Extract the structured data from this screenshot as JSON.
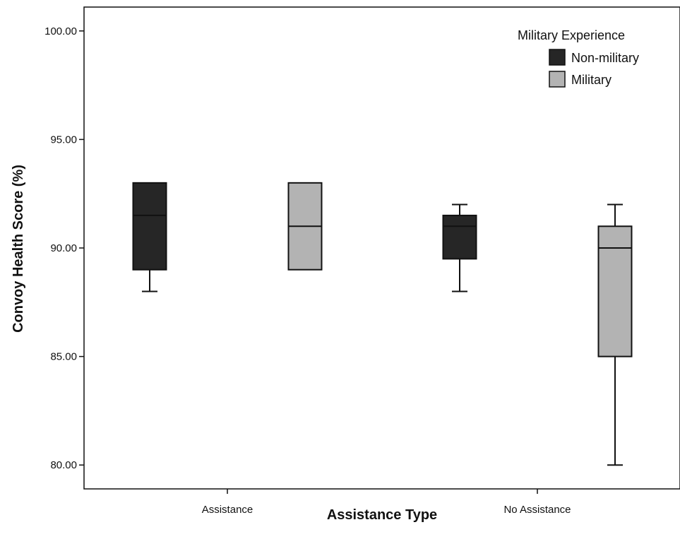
{
  "chart_data": {
    "type": "boxplot",
    "xlabel": "Assistance Type",
    "ylabel": "Convoy Health Score (%)",
    "categories": [
      "Assistance",
      "No Assistance"
    ],
    "ylim": [
      78.9,
      101.1
    ],
    "yticks": [
      80,
      85,
      90,
      95,
      100
    ],
    "ytick_labels": [
      "80.00",
      "85.00",
      "90.00",
      "95.00",
      "100.00"
    ],
    "grid": false,
    "legend": {
      "title": "Military Experience",
      "position": "top-right"
    },
    "series": [
      {
        "name": "Non-military",
        "color": "#262626",
        "boxes": [
          {
            "whisker_low": 88,
            "q1": 89,
            "median": 91.5,
            "q3": 93,
            "whisker_high": 93
          },
          {
            "whisker_low": 88,
            "q1": 89.5,
            "median": 91,
            "q3": 91.5,
            "whisker_high": 92
          }
        ]
      },
      {
        "name": "Military",
        "color": "#b3b3b3",
        "boxes": [
          {
            "whisker_low": 89,
            "q1": 89,
            "median": 91,
            "q3": 93,
            "whisker_high": 93
          },
          {
            "whisker_low": 80,
            "q1": 85,
            "median": 90,
            "q3": 91,
            "whisker_high": 92
          }
        ]
      }
    ]
  }
}
